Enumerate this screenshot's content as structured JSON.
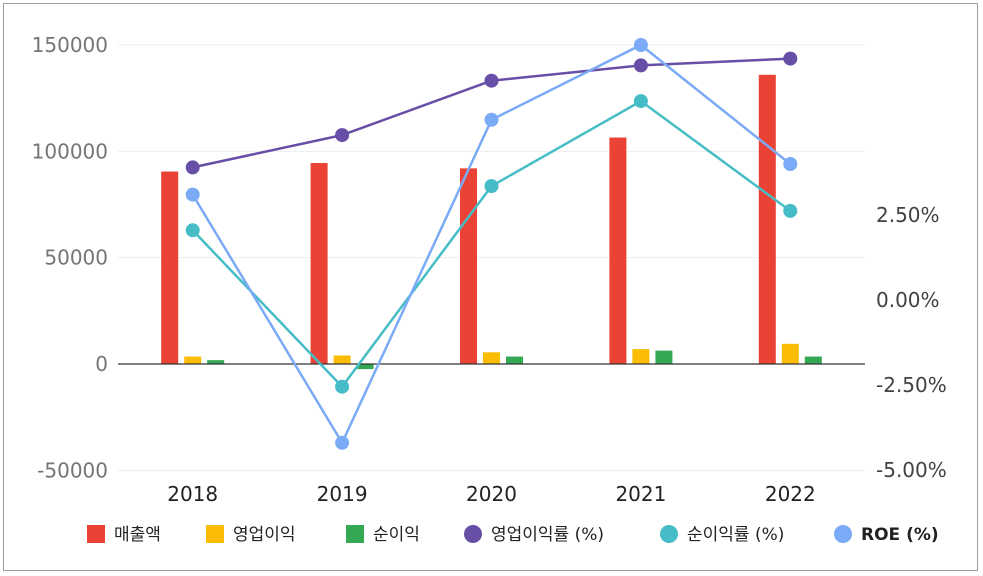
{
  "chart_data": {
    "type": "bar+line",
    "categories": [
      "2018",
      "2019",
      "2020",
      "2021",
      "2022"
    ],
    "y_left": {
      "ticks": [
        "150000",
        "100000",
        "50000",
        "0",
        "-50000"
      ],
      "ylim": [
        -50000,
        150000
      ]
    },
    "y_right": {
      "ticks": [
        "2.50%",
        "0.00%",
        "-2.50%",
        "-5.00%"
      ],
      "ylim": [
        -5.0,
        7.5
      ]
    },
    "bar_series": [
      {
        "name": "매출액",
        "color": "#ea4335",
        "values": [
          90500,
          94500,
          92000,
          106500,
          136000
        ]
      },
      {
        "name": "영업이익",
        "color": "#fbbc04",
        "values": [
          3500,
          4000,
          5500,
          7000,
          9500
        ]
      },
      {
        "name": "순이익",
        "color": "#34a853",
        "values": [
          1800,
          -2400,
          3500,
          6300,
          3500
        ]
      }
    ],
    "line_series": [
      {
        "name": "영업이익률 (%)",
        "color": "#674ea7",
        "values": [
          3.9,
          4.85,
          6.45,
          6.9,
          7.1
        ]
      },
      {
        "name": "순이익률 (%)",
        "color": "#46bdc6",
        "values": [
          2.05,
          -2.55,
          3.35,
          5.85,
          2.62
        ]
      },
      {
        "name": "ROE (%)",
        "color": "#7baaf7",
        "values": [
          3.1,
          -4.2,
          5.3,
          7.5,
          4.0
        ]
      }
    ],
    "legend": [
      {
        "label": "매출액",
        "color": "#ea4335",
        "shape": "square",
        "bold": false
      },
      {
        "label": "영업이익",
        "color": "#fbbc04",
        "shape": "square",
        "bold": false
      },
      {
        "label": "순이익",
        "color": "#34a853",
        "shape": "square",
        "bold": false
      },
      {
        "label": "영업이익률 (%)",
        "color": "#674ea7",
        "shape": "circle",
        "bold": false
      },
      {
        "label": "순이익률 (%)",
        "color": "#46bdc6",
        "shape": "circle",
        "bold": false
      },
      {
        "label": "ROE (%)",
        "color": "#7baaf7",
        "shape": "circle",
        "bold": true
      }
    ],
    "grid": true,
    "legend_position": "bottom"
  }
}
